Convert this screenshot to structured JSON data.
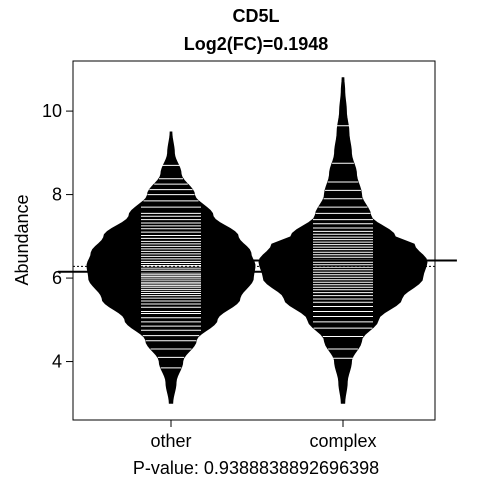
{
  "chart_data": {
    "type": "beanplot",
    "title": "CD5L",
    "subtitle": "Log2(FC)=0.1948",
    "xlabel": "P-value: 0.9388838892696398",
    "ylabel": "Abundance",
    "categories": [
      "other",
      "complex"
    ],
    "ylim": [
      2.6,
      11.2
    ],
    "yticks": [
      4,
      6,
      8,
      10
    ],
    "overall_mean": 6.28,
    "series": [
      {
        "name": "other",
        "mean": 6.15,
        "min": 3.0,
        "max": 9.5,
        "density_profile": [
          [
            3.0,
            0.02
          ],
          [
            3.5,
            0.06
          ],
          [
            4.0,
            0.14
          ],
          [
            4.5,
            0.3
          ],
          [
            5.0,
            0.55
          ],
          [
            5.5,
            0.82
          ],
          [
            6.0,
            0.98
          ],
          [
            6.3,
            1.0
          ],
          [
            6.6,
            0.95
          ],
          [
            7.0,
            0.8
          ],
          [
            7.5,
            0.5
          ],
          [
            8.0,
            0.28
          ],
          [
            8.5,
            0.12
          ],
          [
            9.0,
            0.04
          ],
          [
            9.5,
            0.01
          ]
        ],
        "observations": [
          3.85,
          4.1,
          4.3,
          4.5,
          4.62,
          4.75,
          4.85,
          4.95,
          5.05,
          5.15,
          5.2,
          5.3,
          5.38,
          5.45,
          5.52,
          5.58,
          5.63,
          5.68,
          5.73,
          5.78,
          5.82,
          5.86,
          5.9,
          5.95,
          6.0,
          6.04,
          6.08,
          6.12,
          6.18,
          6.22,
          6.27,
          6.3,
          6.35,
          6.4,
          6.46,
          6.52,
          6.58,
          6.64,
          6.7,
          6.76,
          6.82,
          6.88,
          6.95,
          7.02,
          7.1,
          7.18,
          7.25,
          7.32,
          7.4,
          7.48,
          7.55,
          7.7,
          7.85,
          8.0,
          8.12,
          8.25,
          8.38,
          8.7
        ]
      },
      {
        "name": "complex",
        "mean": 6.42,
        "min": 3.0,
        "max": 10.8,
        "density_profile": [
          [
            3.0,
            0.02
          ],
          [
            3.5,
            0.05
          ],
          [
            4.0,
            0.1
          ],
          [
            4.5,
            0.22
          ],
          [
            5.0,
            0.42
          ],
          [
            5.5,
            0.7
          ],
          [
            6.0,
            0.95
          ],
          [
            6.4,
            1.0
          ],
          [
            6.8,
            0.85
          ],
          [
            7.0,
            0.62
          ],
          [
            7.5,
            0.33
          ],
          [
            8.0,
            0.22
          ],
          [
            8.5,
            0.16
          ],
          [
            9.0,
            0.1
          ],
          [
            9.5,
            0.07
          ],
          [
            10.0,
            0.04
          ],
          [
            10.5,
            0.02
          ],
          [
            10.8,
            0.01
          ]
        ],
        "observations": [
          4.08,
          4.3,
          4.6,
          4.8,
          4.95,
          5.08,
          5.2,
          5.32,
          5.42,
          5.5,
          5.58,
          5.65,
          5.72,
          5.78,
          5.84,
          5.9,
          5.96,
          6.02,
          6.08,
          6.14,
          6.2,
          6.26,
          6.32,
          6.38,
          6.44,
          6.5,
          6.56,
          6.62,
          6.68,
          6.74,
          6.8,
          6.86,
          6.92,
          6.98,
          7.05,
          7.12,
          7.2,
          7.3,
          7.4,
          7.55,
          7.7,
          7.9,
          8.1,
          8.3,
          8.75,
          9.65
        ]
      }
    ],
    "grid": false,
    "legend": "none",
    "colors": {
      "bean_fill": "#000000",
      "bean_line": "#ffffff",
      "mean_line": "#000000",
      "overall_line": "#000000",
      "frame": "#000000",
      "background": "#ffffff"
    }
  }
}
